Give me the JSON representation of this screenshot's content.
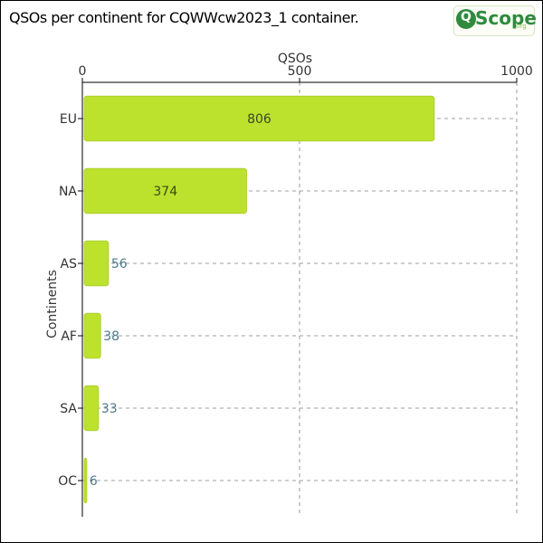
{
  "title": "QSOs per continent for CQWWcw2023_1 container.",
  "logo": {
    "text": "Scope",
    "badge_letter": "Q",
    "suffix": ".org"
  },
  "colors": {
    "bar": "#bce22e",
    "bar_edge": "#a9cc24",
    "label_inside": "#3a4a1a",
    "label_outside": "#4c7a8a",
    "grid": "#808080",
    "axis": "#000000",
    "text": "#333333"
  },
  "chart_data": {
    "type": "bar",
    "orientation": "horizontal",
    "categories": [
      "EU",
      "NA",
      "AS",
      "AF",
      "SA",
      "OC"
    ],
    "values": [
      806,
      374,
      56,
      38,
      33,
      6
    ],
    "xlabel": "QSOs",
    "ylabel": "Continents",
    "xlim": [
      0,
      1000
    ],
    "xticks": [
      0,
      500,
      1000
    ],
    "x_axis_position": "top",
    "grid": true
  }
}
